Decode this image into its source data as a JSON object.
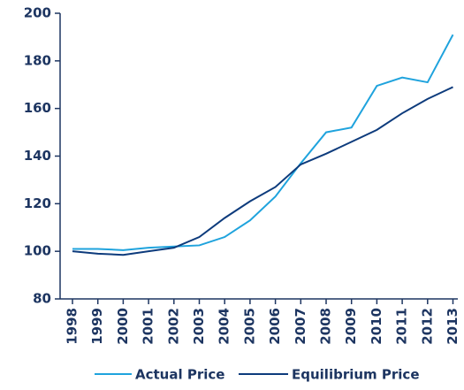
{
  "chart_data": {
    "type": "line",
    "categories": [
      "1998",
      "1999",
      "2000",
      "2001",
      "2002",
      "2003",
      "2004",
      "2005",
      "2006",
      "2007",
      "2008",
      "2009",
      "2010",
      "2011",
      "2012",
      "2013"
    ],
    "series": [
      {
        "name": "Actual Price",
        "color": "#1fa3dd",
        "values": [
          101,
          101,
          100.5,
          101.5,
          102,
          102.5,
          106,
          113,
          123,
          137,
          150,
          152,
          169.5,
          173,
          171,
          191
        ]
      },
      {
        "name": "Equilibrium Price",
        "color": "#0d3b7c",
        "values": [
          100,
          99,
          98.5,
          100,
          101.5,
          106,
          114,
          121,
          127,
          136.5,
          141,
          146,
          151,
          158,
          164,
          169
        ]
      }
    ],
    "ylim": [
      80,
      200
    ],
    "yticks": [
      80,
      100,
      120,
      140,
      160,
      180,
      200
    ],
    "grid": false
  }
}
